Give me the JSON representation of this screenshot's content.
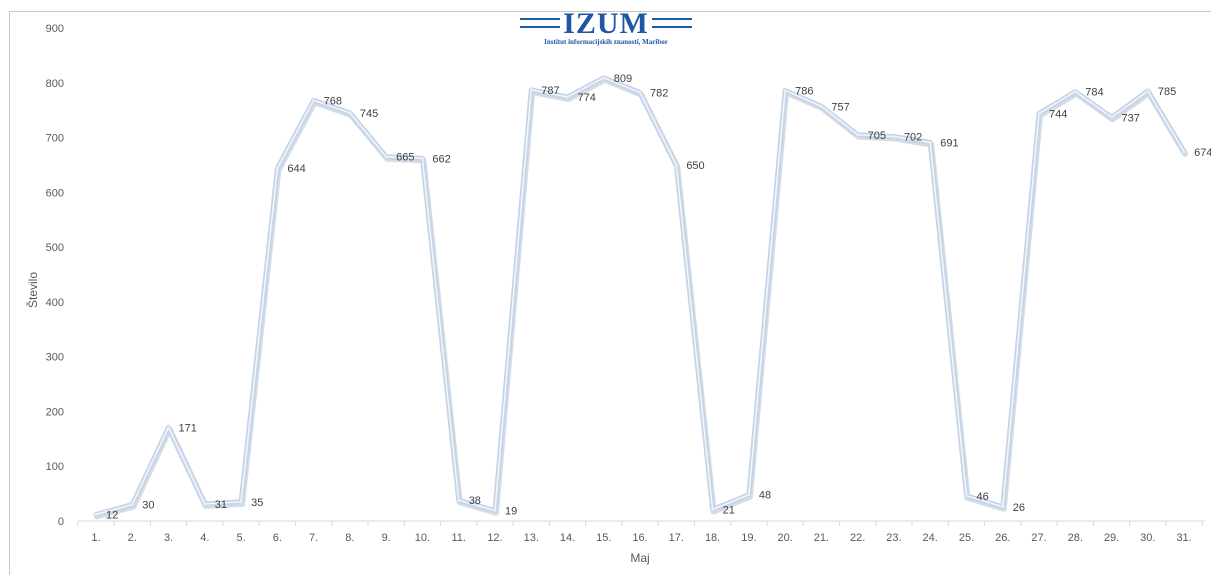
{
  "logo": {
    "text": "IZUM",
    "subtitle": "Institut informacijskih znanosti, Maribor",
    "color": "#1f57a4"
  },
  "chart_data": {
    "type": "line",
    "title": "",
    "xlabel": "Maj",
    "ylabel": "Število",
    "ylim": [
      0,
      900
    ],
    "yticks": [
      0,
      100,
      200,
      300,
      400,
      500,
      600,
      700,
      800,
      900
    ],
    "grid": false,
    "categories": [
      "1.",
      "2.",
      "3.",
      "4.",
      "5.",
      "6.",
      "7.",
      "8.",
      "9.",
      "10.",
      "11.",
      "12.",
      "13.",
      "14.",
      "15.",
      "16.",
      "17.",
      "18.",
      "19.",
      "20.",
      "21.",
      "22.",
      "23.",
      "24.",
      "25.",
      "26.",
      "27.",
      "28.",
      "29.",
      "30.",
      "31."
    ],
    "series": [
      {
        "values": [
          12,
          30,
          171,
          31,
          35,
          644,
          768,
          745,
          665,
          662,
          38,
          19,
          787,
          774,
          809,
          782,
          650,
          21,
          48,
          786,
          757,
          705,
          702,
          691,
          46,
          26,
          744,
          784,
          737,
          785,
          674
        ],
        "color": "#c6d4e8"
      }
    ]
  }
}
